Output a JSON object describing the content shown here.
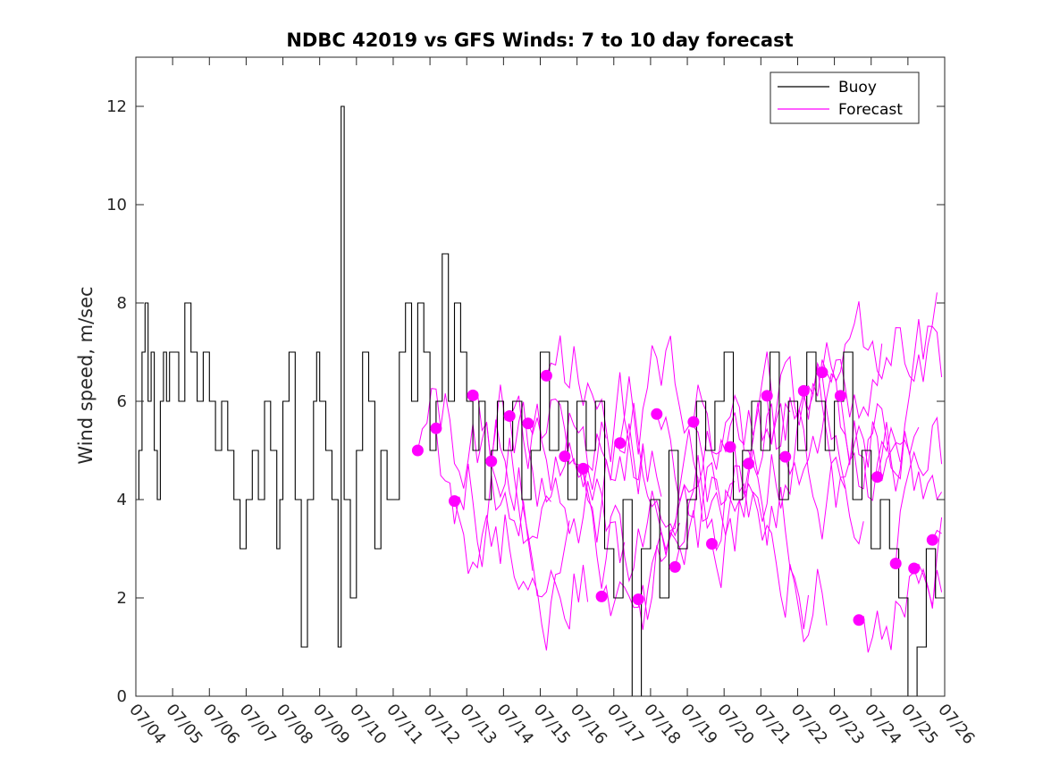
{
  "chart_data": {
    "type": "line",
    "title": "NDBC 42019 vs GFS Winds: 7 to 10 day forecast",
    "xlabel": "",
    "ylabel": "Wind speed, m/sec",
    "xlim": [
      "07/04",
      "07/26"
    ],
    "ylim": [
      0,
      13
    ],
    "x_ticks": [
      "07/04",
      "07/05",
      "07/06",
      "07/07",
      "07/08",
      "07/09",
      "07/10",
      "07/11",
      "07/12",
      "07/13",
      "07/14",
      "07/15",
      "07/16",
      "07/17",
      "07/18",
      "07/19",
      "07/20",
      "07/21",
      "07/22",
      "07/23",
      "07/24",
      "07/25",
      "07/26"
    ],
    "y_ticks": [
      0,
      2,
      4,
      6,
      8,
      10,
      12
    ],
    "grid": false,
    "legend_position": "top-right",
    "colors": {
      "buoy": "#000000",
      "forecast": "#ff00ff"
    },
    "series": [
      {
        "name": "Buoy",
        "x": [
          "07/04 00:00",
          "07/04 02:00",
          "07/04 04:00",
          "07/04 06:00",
          "07/04 08:00",
          "07/04 10:00",
          "07/04 12:00",
          "07/04 14:00",
          "07/04 16:00",
          "07/04 18:00",
          "07/04 20:00",
          "07/04 22:00",
          "07/05 00:00",
          "07/05 04:00",
          "07/05 08:00",
          "07/05 12:00",
          "07/05 16:00",
          "07/05 20:00",
          "07/06 00:00",
          "07/06 04:00",
          "07/06 08:00",
          "07/06 12:00",
          "07/06 16:00",
          "07/06 20:00",
          "07/07 00:00",
          "07/07 04:00",
          "07/07 08:00",
          "07/07 12:00",
          "07/07 16:00",
          "07/07 20:00",
          "07/07 22:00",
          "07/08 00:00",
          "07/08 04:00",
          "07/08 08:00",
          "07/08 12:00",
          "07/08 16:00",
          "07/08 20:00",
          "07/08 22:00",
          "07/09 00:00",
          "07/09 04:00",
          "07/09 08:00",
          "07/09 12:00",
          "07/09 14:00",
          "07/09 16:00",
          "07/09 20:00",
          "07/10 00:00",
          "07/10 04:00",
          "07/10 08:00",
          "07/10 12:00",
          "07/10 16:00",
          "07/10 20:00",
          "07/11 00:00",
          "07/11 04:00",
          "07/11 08:00",
          "07/11 12:00",
          "07/11 16:00",
          "07/11 20:00",
          "07/12 00:00",
          "07/12 04:00",
          "07/12 08:00",
          "07/12 12:00",
          "07/12 16:00",
          "07/12 20:00",
          "07/13 00:00",
          "07/13 04:00",
          "07/13 08:00",
          "07/13 12:00",
          "07/13 16:00",
          "07/13 20:00",
          "07/14 00:00",
          "07/14 06:00",
          "07/14 12:00",
          "07/14 18:00",
          "07/15 00:00",
          "07/15 06:00",
          "07/15 12:00",
          "07/15 18:00",
          "07/16 00:00",
          "07/16 06:00",
          "07/16 12:00",
          "07/16 18:00",
          "07/17 00:00",
          "07/17 06:00",
          "07/17 12:00",
          "07/17 18:00",
          "07/18 00:00",
          "07/18 06:00",
          "07/18 12:00",
          "07/18 18:00",
          "07/19 00:00",
          "07/19 06:00",
          "07/19 12:00",
          "07/19 18:00",
          "07/20 00:00",
          "07/20 06:00",
          "07/20 12:00",
          "07/20 18:00",
          "07/21 00:00",
          "07/21 06:00",
          "07/21 12:00",
          "07/21 18:00",
          "07/22 00:00",
          "07/22 06:00",
          "07/22 12:00",
          "07/22 18:00",
          "07/23 00:00",
          "07/23 06:00",
          "07/23 12:00",
          "07/23 18:00",
          "07/24 00:00",
          "07/24 06:00",
          "07/24 12:00",
          "07/24 18:00",
          "07/25 00:00",
          "07/25 06:00",
          "07/25 12:00",
          "07/25 18:00"
        ],
        "values": [
          4,
          5,
          7,
          8,
          6,
          7,
          5,
          4,
          6,
          7,
          6,
          7,
          7,
          6,
          8,
          7,
          6,
          7,
          6,
          5,
          6,
          5,
          4,
          3,
          4,
          5,
          4,
          6,
          5,
          3,
          4,
          6,
          7,
          4,
          1,
          4,
          6,
          7,
          6,
          5,
          4,
          1,
          12,
          4,
          2,
          5,
          7,
          6,
          3,
          5,
          4,
          4,
          7,
          8,
          6,
          8,
          7,
          5,
          6,
          9,
          6,
          8,
          7,
          6,
          5,
          6,
          4,
          5,
          6,
          5,
          6,
          4,
          5,
          7,
          5,
          6,
          4,
          6,
          5,
          6,
          3,
          2,
          4,
          0,
          3,
          4,
          2,
          5,
          3,
          4,
          6,
          5,
          6,
          7,
          4,
          5,
          6,
          5,
          7,
          4,
          6,
          5,
          7,
          6,
          5,
          6,
          7,
          4,
          5,
          3,
          4,
          3,
          2,
          0,
          1,
          3,
          2
        ]
      },
      {
        "name": "Forecast",
        "x": [
          "07/11 16:00",
          "07/12 04:00",
          "07/12 16:00",
          "07/13 04:00",
          "07/13 16:00",
          "07/14 04:00",
          "07/14 16:00",
          "07/15 04:00",
          "07/15 16:00",
          "07/16 04:00",
          "07/16 16:00",
          "07/17 04:00",
          "07/17 16:00",
          "07/18 04:00",
          "07/18 16:00",
          "07/19 04:00",
          "07/19 16:00",
          "07/20 04:00",
          "07/20 16:00",
          "07/21 04:00",
          "07/21 16:00",
          "07/22 04:00",
          "07/22 16:00",
          "07/23 04:00",
          "07/23 16:00",
          "07/24 04:00",
          "07/24 16:00",
          "07/25 04:00",
          "07/25 16:00"
        ],
        "values": [
          5.0,
          5.45,
          3.97,
          6.12,
          4.78,
          5.7,
          5.55,
          6.52,
          4.88,
          4.63,
          2.03,
          5.15,
          1.97,
          5.74,
          2.63,
          5.58,
          3.1,
          5.07,
          4.73,
          6.11,
          4.87,
          6.21,
          6.59,
          6.11,
          1.55,
          4.46,
          2.7,
          2.6,
          3.18
        ]
      }
    ]
  },
  "legend": {
    "buoy_label": "Buoy",
    "forecast_label": "Forecast"
  }
}
